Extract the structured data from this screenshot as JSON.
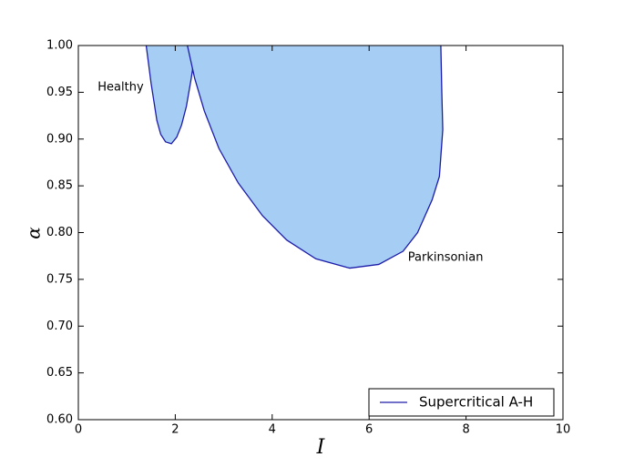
{
  "chart_data": {
    "type": "line",
    "fill": "#a6cdf4",
    "xlabel": "I",
    "ylabel": "α",
    "annotations": [
      "Healthy",
      "Parkinsonian"
    ],
    "series": [
      {
        "name": "Supercritical A-H",
        "color": "#1c1caa",
        "x": [
          1.4,
          1.45,
          1.5,
          1.56,
          1.62,
          1.7,
          1.8,
          1.92,
          2.03,
          2.13,
          2.23,
          2.33,
          2.43
        ],
        "values": [
          1.0,
          0.98,
          0.96,
          0.94,
          0.92,
          0.905,
          0.897,
          0.895,
          0.902,
          0.915,
          0.935,
          0.965,
          1.0
        ]
      },
      {
        "color": "#1c1caa",
        "x": [
          2.25,
          2.4,
          2.6,
          2.9,
          3.3,
          3.8,
          4.3,
          4.9,
          5.6,
          6.2,
          6.7,
          7.0,
          7.3,
          7.45,
          7.52,
          7.5,
          7.48
        ],
        "values": [
          1.0,
          0.965,
          0.93,
          0.89,
          0.853,
          0.818,
          0.792,
          0.772,
          0.762,
          0.766,
          0.78,
          0.8,
          0.835,
          0.86,
          0.91,
          0.95,
          1.0
        ]
      }
    ],
    "xlim": [
      0,
      10
    ],
    "xticks": [
      0,
      2,
      4,
      6,
      8,
      10
    ],
    "ylim": [
      0.6,
      1.0
    ],
    "yticks": [
      {
        "value": 0.6,
        "label": "0.60"
      },
      {
        "value": 0.65,
        "label": "0.65"
      },
      {
        "value": 0.7,
        "label": "0.70"
      },
      {
        "value": 0.75,
        "label": "0.75"
      },
      {
        "value": 0.8,
        "label": "0.80"
      },
      {
        "value": 0.85,
        "label": "0.85"
      },
      {
        "value": 0.9,
        "label": "0.90"
      },
      {
        "value": 0.95,
        "label": "0.95"
      },
      {
        "value": 1.0,
        "label": "1.00"
      }
    ],
    "legend": "lower right"
  }
}
